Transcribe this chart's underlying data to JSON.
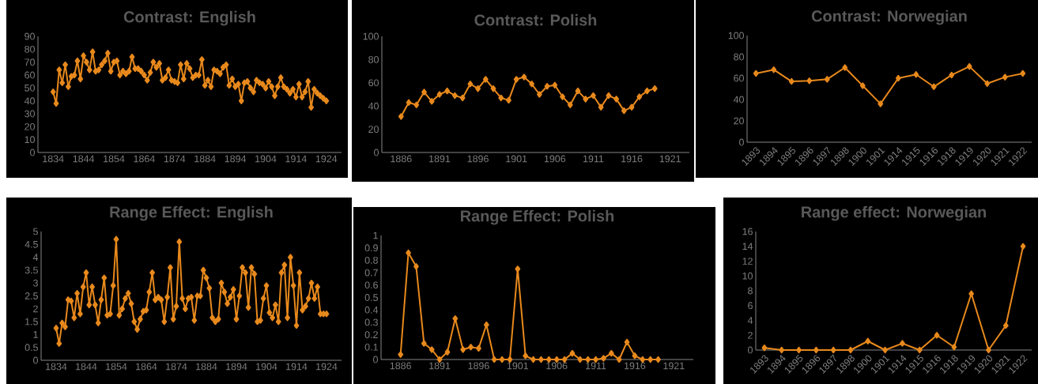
{
  "chart_data": [
    {
      "type": "line",
      "title": "Contrast: English",
      "color": "#e8891c",
      "marker": "diamond",
      "xlim": [
        1829,
        1929
      ],
      "xticks": [
        1834,
        1844,
        1854,
        1864,
        1874,
        1884,
        1894,
        1904,
        1914,
        1924
      ],
      "ylim": [
        0,
        90
      ],
      "yticks": [
        0,
        10,
        20,
        30,
        40,
        50,
        60,
        70,
        80,
        90
      ],
      "x": [
        1834,
        1835,
        1836,
        1837,
        1838,
        1839,
        1840,
        1841,
        1842,
        1843,
        1844,
        1845,
        1846,
        1847,
        1848,
        1849,
        1850,
        1851,
        1852,
        1853,
        1854,
        1855,
        1856,
        1857,
        1858,
        1859,
        1860,
        1861,
        1862,
        1863,
        1864,
        1865,
        1866,
        1867,
        1868,
        1869,
        1870,
        1871,
        1872,
        1873,
        1874,
        1875,
        1876,
        1877,
        1878,
        1879,
        1880,
        1881,
        1882,
        1883,
        1884,
        1885,
        1886,
        1887,
        1888,
        1889,
        1890,
        1891,
        1892,
        1893,
        1894,
        1895,
        1896,
        1897,
        1898,
        1899,
        1900,
        1901,
        1902,
        1903,
        1904,
        1905,
        1906,
        1907,
        1908,
        1909,
        1910,
        1911,
        1912,
        1913,
        1914,
        1915,
        1916,
        1917,
        1918,
        1919,
        1920,
        1921,
        1922,
        1923,
        1924
      ],
      "values": [
        47,
        38,
        64,
        54,
        68,
        51,
        59,
        60,
        71,
        57,
        75,
        70,
        64,
        78,
        63,
        64,
        68,
        71,
        77,
        63,
        70,
        71,
        60,
        63,
        61,
        63,
        74,
        65,
        65,
        63,
        60,
        56,
        62,
        70,
        66,
        69,
        56,
        58,
        64,
        56,
        55,
        54,
        68,
        57,
        69,
        65,
        58,
        60,
        60,
        72,
        52,
        56,
        51,
        64,
        63,
        61,
        66,
        68,
        52,
        57,
        51,
        53,
        40,
        54,
        55,
        50,
        47,
        56,
        54,
        53,
        50,
        55,
        51,
        44,
        51,
        58,
        51,
        49,
        46,
        49,
        43,
        53,
        43,
        47,
        55,
        35,
        49,
        46,
        44,
        42,
        40
      ]
    },
    {
      "type": "line",
      "title": "Contrast: Polish",
      "color": "#e8891c",
      "marker": "diamond",
      "xlim": [
        1883.5,
        1923.5
      ],
      "xticks": [
        1886,
        1891,
        1896,
        1901,
        1906,
        1911,
        1916,
        1921
      ],
      "ylim": [
        0,
        100
      ],
      "yticks": [
        0,
        20,
        40,
        60,
        80,
        100
      ],
      "x": [
        1886,
        1887,
        1888,
        1889,
        1890,
        1891,
        1892,
        1893,
        1894,
        1895,
        1896,
        1897,
        1898,
        1899,
        1900,
        1901,
        1902,
        1903,
        1904,
        1905,
        1906,
        1907,
        1908,
        1909,
        1910,
        1911,
        1912,
        1913,
        1914,
        1915,
        1916,
        1917,
        1918,
        1919
      ],
      "values": [
        31,
        43,
        41,
        52,
        44,
        50,
        53,
        49,
        47,
        59,
        55,
        63,
        55,
        47,
        45,
        63,
        65,
        59,
        50,
        57,
        58,
        48,
        41,
        53,
        46,
        49,
        39,
        49,
        46,
        36,
        39,
        48,
        53,
        55
      ]
    },
    {
      "type": "line",
      "title": "Contrast: Norwegian",
      "color": "#e8891c",
      "marker": "diamond",
      "ylim": [
        0,
        100
      ],
      "yticks": [
        0,
        20,
        40,
        60,
        80,
        100
      ],
      "categories": [
        "1893",
        "1894",
        "1895",
        "1896",
        "1897",
        "1898",
        "1900",
        "1901",
        "1914",
        "1915",
        "1916",
        "1918",
        "1919",
        "1920",
        "1921",
        "1922"
      ],
      "values": [
        64.5,
        68,
        57,
        57.6,
        59,
        70,
        53,
        36,
        60,
        63.5,
        52,
        63,
        71,
        55,
        61,
        64.5
      ]
    },
    {
      "type": "line",
      "title": "Range Effect: English",
      "color": "#e8891c",
      "marker": "diamond",
      "xlim": [
        1829,
        1929
      ],
      "xticks": [
        1834,
        1844,
        1854,
        1864,
        1874,
        1884,
        1894,
        1904,
        1914,
        1924
      ],
      "ylim": [
        0,
        5
      ],
      "yticks": [
        0,
        0.5,
        1,
        1.5,
        2,
        2.5,
        3,
        3.5,
        4,
        4.5,
        5
      ],
      "x": [
        1834,
        1835,
        1836,
        1837,
        1838,
        1839,
        1840,
        1841,
        1842,
        1843,
        1844,
        1845,
        1846,
        1847,
        1848,
        1849,
        1850,
        1851,
        1852,
        1853,
        1854,
        1855,
        1856,
        1857,
        1858,
        1859,
        1860,
        1861,
        1862,
        1863,
        1864,
        1865,
        1866,
        1867,
        1868,
        1869,
        1870,
        1871,
        1872,
        1873,
        1874,
        1875,
        1876,
        1877,
        1878,
        1879,
        1880,
        1881,
        1882,
        1883,
        1884,
        1885,
        1886,
        1887,
        1888,
        1889,
        1890,
        1891,
        1892,
        1893,
        1894,
        1895,
        1896,
        1897,
        1898,
        1899,
        1900,
        1901,
        1902,
        1903,
        1904,
        1905,
        1906,
        1907,
        1908,
        1909,
        1910,
        1911,
        1912,
        1913,
        1914,
        1915,
        1916,
        1917,
        1918,
        1919,
        1920,
        1921,
        1922,
        1923,
        1924
      ],
      "values": [
        1.25,
        0.65,
        1.45,
        1.3,
        2.35,
        2.3,
        1.65,
        2.6,
        1.8,
        2.85,
        3.4,
        2.15,
        2.85,
        2.15,
        1.45,
        2.35,
        3.2,
        1.75,
        1.8,
        2.9,
        4.7,
        1.75,
        2.0,
        2.4,
        2.6,
        2.2,
        1.5,
        1.2,
        1.6,
        1.9,
        1.95,
        2.65,
        3.4,
        2.35,
        2.45,
        2.35,
        1.5,
        2.45,
        3.6,
        1.6,
        2.1,
        4.6,
        2.4,
        2.0,
        2.4,
        2.45,
        1.55,
        2.5,
        2.5,
        3.5,
        3.2,
        2.8,
        1.65,
        1.5,
        1.6,
        3.0,
        2.65,
        2.2,
        2.45,
        2.75,
        1.6,
        2.5,
        3.6,
        3.4,
        2.05,
        3.6,
        3.35,
        1.5,
        1.55,
        2.4,
        2.9,
        1.85,
        1.65,
        2.15,
        1.5,
        3.4,
        3.7,
        1.65,
        4.0,
        2.9,
        1.35,
        3.4,
        1.95,
        2.1,
        2.4,
        3.0,
        2.4,
        2.85,
        1.8,
        1.8,
        1.8
      ]
    },
    {
      "type": "line",
      "title": "Range Effect: Polish",
      "color": "#e8891c",
      "marker": "diamond",
      "xlim": [
        1883.5,
        1923.5
      ],
      "xticks": [
        1886,
        1891,
        1896,
        1901,
        1906,
        1911,
        1916,
        1921
      ],
      "ylim": [
        0,
        1
      ],
      "yticks": [
        0,
        0.1,
        0.2,
        0.3,
        0.4,
        0.5,
        0.6,
        0.7,
        0.8,
        0.9,
        1
      ],
      "x": [
        1886,
        1887,
        1888,
        1889,
        1890,
        1891,
        1892,
        1893,
        1894,
        1895,
        1896,
        1897,
        1898,
        1899,
        1900,
        1901,
        1902,
        1903,
        1904,
        1905,
        1906,
        1907,
        1908,
        1909,
        1910,
        1911,
        1912,
        1913,
        1914,
        1915,
        1916,
        1917,
        1918,
        1919
      ],
      "values": [
        0.04,
        0.86,
        0.75,
        0.13,
        0.08,
        0,
        0.06,
        0.33,
        0.08,
        0.1,
        0.09,
        0.28,
        0,
        0,
        0,
        0.73,
        0.03,
        0,
        0,
        0,
        0,
        0,
        0.05,
        0,
        0,
        0,
        0.01,
        0.05,
        0,
        0.14,
        0.03,
        0,
        0,
        0
      ]
    },
    {
      "type": "line",
      "title": "Range effect: Norwegian",
      "color": "#e8891c",
      "marker": "diamond",
      "ylim": [
        0,
        16
      ],
      "yticks": [
        0,
        2,
        4,
        6,
        8,
        10,
        12,
        14,
        16
      ],
      "categories": [
        "1893",
        "1894",
        "1895",
        "1896",
        "1897",
        "1898",
        "1900",
        "1901",
        "1914",
        "1915",
        "1916",
        "1918",
        "1919",
        "1920",
        "1921",
        "1922"
      ],
      "values": [
        0.3,
        0,
        0,
        0,
        0,
        0,
        1.2,
        0,
        0.9,
        0,
        2.0,
        0.4,
        7.6,
        0,
        3.3,
        14.0
      ]
    }
  ]
}
